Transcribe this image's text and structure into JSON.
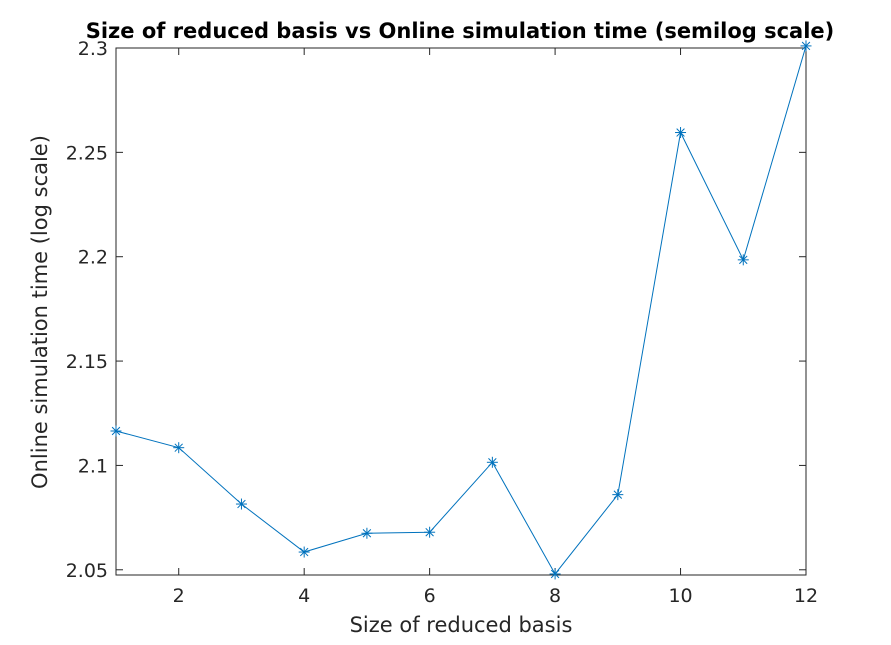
{
  "chart_data": {
    "type": "line",
    "title": "Size of reduced basis vs Online simulation time (semilog scale)",
    "xlabel": "Size of reduced basis",
    "ylabel": "Online simulation time (log scale)",
    "xlim": [
      1,
      12
    ],
    "ylim": [
      2.0475,
      2.3
    ],
    "xticks": [
      2,
      4,
      6,
      8,
      10,
      12
    ],
    "xtick_labels": [
      "2",
      "4",
      "6",
      "8",
      "10",
      "12"
    ],
    "yticks": [
      2.05,
      2.1,
      2.15,
      2.2,
      2.25,
      2.3
    ],
    "ytick_labels": [
      "2.05",
      "2.1",
      "2.15",
      "2.2",
      "2.25",
      "2.3"
    ],
    "grid": false,
    "marker": "asterisk",
    "series": [
      {
        "x": [
          1,
          2,
          3,
          4,
          5,
          6,
          7,
          8,
          9,
          10,
          11,
          12
        ],
        "values": [
          2.1165,
          2.1085,
          2.0815,
          2.0585,
          2.0675,
          2.068,
          2.1015,
          2.048,
          2.086,
          2.2595,
          2.1985,
          2.301
        ],
        "color": "#0072BD"
      }
    ]
  }
}
